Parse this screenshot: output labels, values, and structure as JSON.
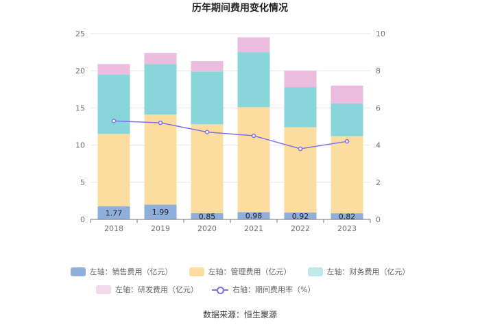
{
  "chart_data": {
    "type": "bar",
    "stacked": true,
    "title": "历年期间费用变化情况",
    "categories": [
      "2018",
      "2019",
      "2020",
      "2021",
      "2022",
      "2023"
    ],
    "series": [
      {
        "name": "左轴：销售费用（亿元）",
        "axis": "left",
        "color": "#8eaedb",
        "values": [
          1.77,
          1.99,
          0.85,
          0.98,
          0.92,
          0.82
        ],
        "labels": [
          "1.77",
          "1.99",
          "0.85",
          "0.98",
          "0.92",
          "0.82"
        ]
      },
      {
        "name": "左轴：管理费用（亿元）",
        "axis": "left",
        "color": "#fddca0",
        "values": [
          9.73,
          12.11,
          11.95,
          14.12,
          11.48,
          10.38
        ]
      },
      {
        "name": "左轴：财务费用（亿元）",
        "axis": "left",
        "color": "#88d6d9",
        "values": [
          8.0,
          6.8,
          7.1,
          7.4,
          5.4,
          4.4
        ]
      },
      {
        "name": "左轴：研发费用（亿元）",
        "axis": "left",
        "color": "#ecbcdf",
        "values": [
          1.4,
          1.5,
          1.4,
          2.0,
          2.2,
          2.4
        ]
      },
      {
        "name": "右轴：期间费用率（%）",
        "axis": "right",
        "type": "line",
        "color": "#7b72e9",
        "values": [
          5.3,
          5.2,
          4.7,
          4.5,
          3.8,
          4.2
        ]
      }
    ],
    "left_axis": {
      "min": 0,
      "max": 25,
      "ticks": [
        0,
        5,
        10,
        15,
        20,
        25
      ]
    },
    "right_axis": {
      "min": 0,
      "max": 10,
      "ticks": [
        0,
        2,
        4,
        6,
        8,
        10
      ]
    },
    "grid": true,
    "legend_position": "bottom"
  },
  "source": "数据来源：恒生聚源"
}
